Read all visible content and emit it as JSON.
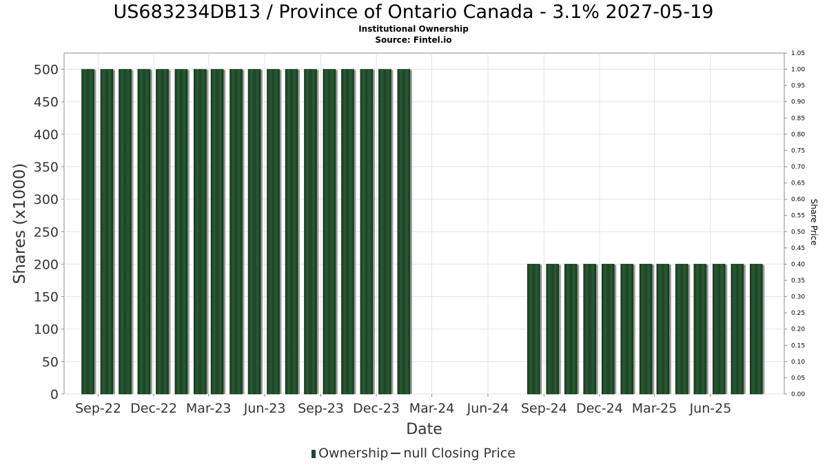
{
  "chart_data": {
    "type": "bar",
    "title": "US683234DB13 / Province of Ontario Canada - 3.1% 2027-05-19",
    "subtitle_lines": [
      "Institutional Ownership",
      "Source: Fintel.io"
    ],
    "xlabel": "Date",
    "ylabel": "Shares (x1000)",
    "y2label": "Share Price",
    "ylim": [
      0,
      525
    ],
    "y2lim": [
      0,
      1.05
    ],
    "yticks": [
      0,
      50,
      100,
      150,
      200,
      250,
      300,
      350,
      400,
      450,
      500
    ],
    "y2ticks": [
      "0.00",
      "0.05",
      "0.10",
      "0.15",
      "0.20",
      "0.25",
      "0.30",
      "0.35",
      "0.40",
      "0.45",
      "0.50",
      "0.55",
      "0.60",
      "0.65",
      "0.70",
      "0.75",
      "0.80",
      "0.85",
      "0.90",
      "0.95",
      "1.00",
      "1.05"
    ],
    "xlim": [
      "2022-07-07",
      "2025-09-30"
    ],
    "xticks": [
      {
        "label": "Sep-22",
        "date": "2022-09-01"
      },
      {
        "label": "Dec-22",
        "date": "2022-12-01"
      },
      {
        "label": "Mar-23",
        "date": "2023-03-01"
      },
      {
        "label": "Jun-23",
        "date": "2023-06-01"
      },
      {
        "label": "Sep-23",
        "date": "2023-09-01"
      },
      {
        "label": "Dec-23",
        "date": "2023-12-01"
      },
      {
        "label": "Mar-24",
        "date": "2024-03-01"
      },
      {
        "label": "Jun-24",
        "date": "2024-06-01"
      },
      {
        "label": "Sep-24",
        "date": "2024-09-01"
      },
      {
        "label": "Dec-24",
        "date": "2024-12-01"
      },
      {
        "label": "Mar-25",
        "date": "2025-03-01"
      },
      {
        "label": "Jun-25",
        "date": "2025-06-01"
      }
    ],
    "series": [
      {
        "name": "Ownership",
        "color": "#1f4a2a",
        "points": [
          {
            "date": "2022-08-15",
            "value": 500
          },
          {
            "date": "2022-09-15",
            "value": 500
          },
          {
            "date": "2022-10-15",
            "value": 500
          },
          {
            "date": "2022-11-15",
            "value": 500
          },
          {
            "date": "2022-12-15",
            "value": 500
          },
          {
            "date": "2023-01-15",
            "value": 500
          },
          {
            "date": "2023-02-15",
            "value": 500
          },
          {
            "date": "2023-03-15",
            "value": 500
          },
          {
            "date": "2023-04-15",
            "value": 500
          },
          {
            "date": "2023-05-15",
            "value": 500
          },
          {
            "date": "2023-06-15",
            "value": 500
          },
          {
            "date": "2023-07-15",
            "value": 500
          },
          {
            "date": "2023-08-15",
            "value": 500
          },
          {
            "date": "2023-09-15",
            "value": 500
          },
          {
            "date": "2023-10-15",
            "value": 500
          },
          {
            "date": "2023-11-15",
            "value": 500
          },
          {
            "date": "2023-12-15",
            "value": 500
          },
          {
            "date": "2024-01-15",
            "value": 500
          },
          {
            "date": "2024-08-15",
            "value": 200
          },
          {
            "date": "2024-09-15",
            "value": 200
          },
          {
            "date": "2024-10-15",
            "value": 200
          },
          {
            "date": "2024-11-15",
            "value": 200
          },
          {
            "date": "2024-12-15",
            "value": 200
          },
          {
            "date": "2025-01-15",
            "value": 200
          },
          {
            "date": "2025-02-15",
            "value": 200
          },
          {
            "date": "2025-03-15",
            "value": 200
          },
          {
            "date": "2025-04-15",
            "value": 200
          },
          {
            "date": "2025-05-15",
            "value": 200
          },
          {
            "date": "2025-06-15",
            "value": 200
          },
          {
            "date": "2025-07-15",
            "value": 200
          },
          {
            "date": "2025-08-15",
            "value": 200
          }
        ]
      },
      {
        "name": "null Closing Price",
        "color": "#333333",
        "points": []
      }
    ],
    "grid": true,
    "legend_position": "bottom-center"
  }
}
